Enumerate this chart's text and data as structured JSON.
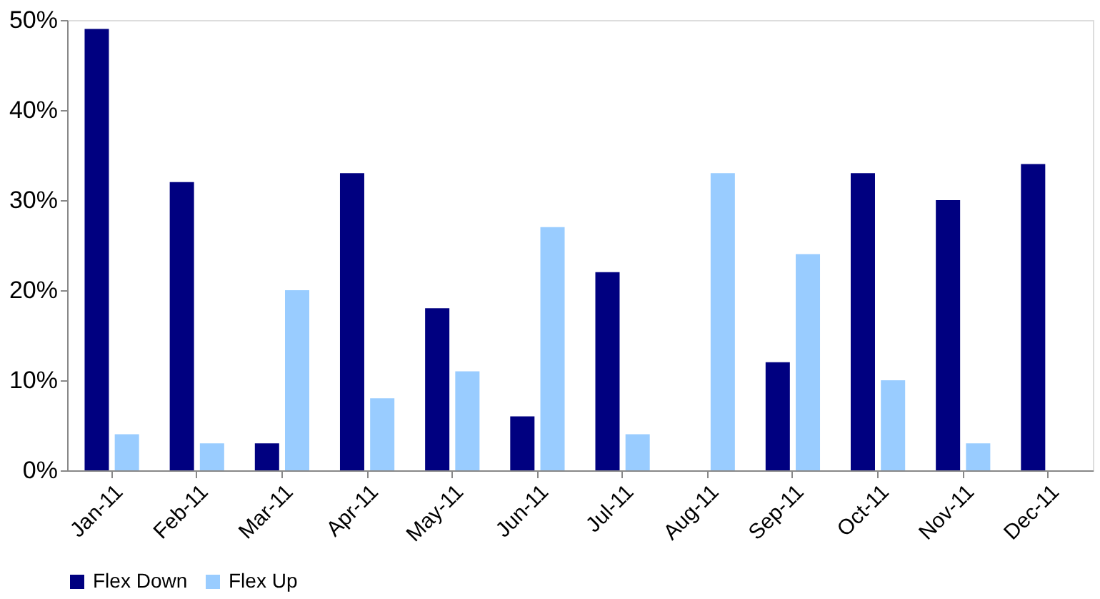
{
  "chart_data": {
    "type": "bar",
    "categories": [
      "Jan-11",
      "Feb-11",
      "Mar-11",
      "Apr-11",
      "May-11",
      "Jun-11",
      "Jul-11",
      "Aug-11",
      "Sep-11",
      "Oct-11",
      "Nov-11",
      "Dec-11"
    ],
    "series": [
      {
        "name": "Flex Down",
        "color": "#000080",
        "values": [
          49,
          32,
          3,
          33,
          18,
          6,
          22,
          0,
          12,
          33,
          30,
          34
        ]
      },
      {
        "name": "Flex Up",
        "color": "#99ccff",
        "values": [
          4,
          3,
          20,
          8,
          11,
          27,
          4,
          33,
          24,
          10,
          3,
          0
        ]
      }
    ],
    "ylim": [
      0,
      50
    ],
    "yticks": [
      {
        "value": 0,
        "label": "0%"
      },
      {
        "value": 10,
        "label": "10%"
      },
      {
        "value": 20,
        "label": "20%"
      },
      {
        "value": 30,
        "label": "30%"
      },
      {
        "value": 40,
        "label": "40%"
      },
      {
        "value": 50,
        "label": "50%"
      }
    ],
    "grid": false,
    "legend": "bottom"
  }
}
